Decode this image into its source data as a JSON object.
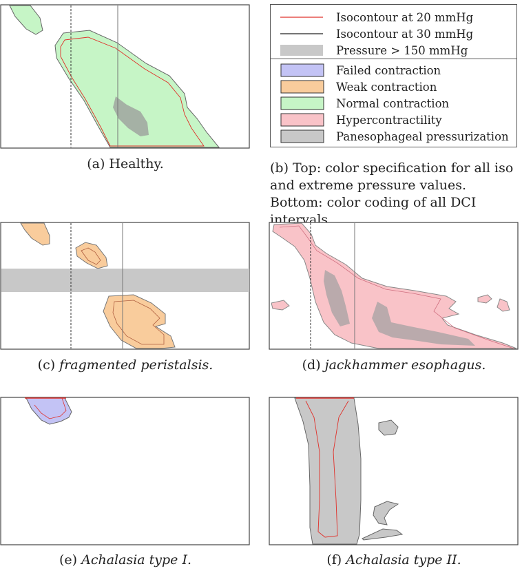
{
  "figure": {
    "panels": [
      {
        "id": "a",
        "caption_prefix": "(a) ",
        "caption_text": "Healthy.",
        "italic": false
      },
      {
        "id": "c",
        "caption_prefix": "(c) ",
        "caption_text": "fragmented peristalsis.",
        "italic": true
      },
      {
        "id": "d",
        "caption_prefix": "(d) ",
        "caption_text": "jackhammer esophagus.",
        "italic": true
      },
      {
        "id": "e",
        "caption_prefix": "(e) ",
        "caption_text": "Achalasia type I.",
        "italic": true
      },
      {
        "id": "f",
        "caption_prefix": "(f) ",
        "caption_text": "Achalasia type II.",
        "italic": true
      }
    ],
    "legend": {
      "iso": [
        {
          "label": "Isocontour at 20 mmHg",
          "color": "#e0302a"
        },
        {
          "label": "Isocontour at 30 mmHg",
          "color": "#222222"
        },
        {
          "label": "Pressure > 150 mmHg",
          "color": "#c8c8c8"
        }
      ],
      "dci": [
        {
          "label": "Failed contraction",
          "color": "#c3c3f5"
        },
        {
          "label": "Weak contraction",
          "color": "#f9cc9c"
        },
        {
          "label": "Normal contraction",
          "color": "#c6f5c6"
        },
        {
          "label": "Hypercontractility",
          "color": "#f9c3c8"
        },
        {
          "label": "Panesophageal pressurization",
          "color": "#c8c8c8"
        }
      ]
    },
    "caption_b": "(b) Top: color specification for all iso and extreme pressure values. Bottom: color coding of all DCI intervals."
  }
}
